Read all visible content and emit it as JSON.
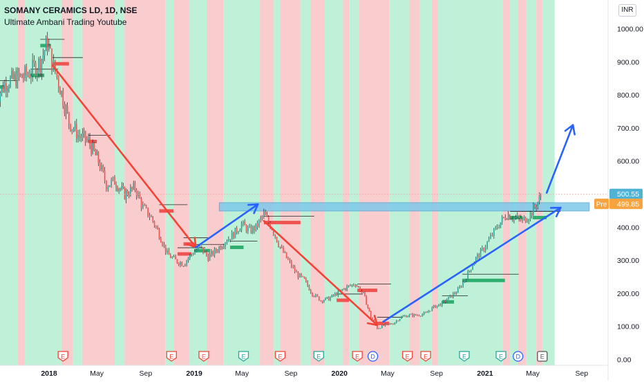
{
  "header": {
    "title": "SOMANY CERAMICS LD, 1D, NSE",
    "subtitle": "Ultimate Ambani Trading Youtube"
  },
  "price_axis": {
    "currency": "INR",
    "last_price_label": "500.55",
    "pre_label": "Pre",
    "pre_price_label": "499.85"
  },
  "colors": {
    "bull_zone": "#b7f0d4",
    "bear_zone": "#f8c6c8",
    "up_candle": "#26a69a",
    "down_candle": "#ef5350",
    "red_arrow": "#f44336",
    "blue_arrow": "#2962ff",
    "resistance_box": "#7ec8ea",
    "last_price_badge": "#4fb3d6",
    "pre_badge": "#f7a440",
    "event_earnings": "#f44336",
    "event_earnings_upcoming": "#26a69a",
    "event_dividend": "#2962ff"
  },
  "chart_data": {
    "type": "line",
    "title": "SOMANY CERAMICS LD, 1D, NSE",
    "subtitle": "Ultimate Ambani Trading Youtube",
    "xlabel": "",
    "ylabel": "",
    "x_range": [
      "2017-08-20",
      "2021-10-15"
    ],
    "ylim": [
      0,
      1000
    ],
    "grid": false,
    "y_ticks": [
      "0.00",
      "100.00",
      "200.00",
      "300.00",
      "400.00",
      "500.00",
      "600.00",
      "700.00",
      "800.00",
      "900.00",
      "1000.00"
    ],
    "x_ticks": [
      {
        "date": "2018-01-01",
        "label": "2018",
        "bold": true
      },
      {
        "date": "2018-05-01",
        "label": "May",
        "bold": false
      },
      {
        "date": "2018-09-01",
        "label": "Sep",
        "bold": false
      },
      {
        "date": "2019-01-01",
        "label": "2019",
        "bold": true
      },
      {
        "date": "2019-05-01",
        "label": "May",
        "bold": false
      },
      {
        "date": "2019-09-01",
        "label": "Sep",
        "bold": false
      },
      {
        "date": "2020-01-01",
        "label": "2020",
        "bold": true
      },
      {
        "date": "2020-05-01",
        "label": "May",
        "bold": false
      },
      {
        "date": "2020-09-01",
        "label": "Sep",
        "bold": false
      },
      {
        "date": "2021-01-01",
        "label": "2021",
        "bold": true
      },
      {
        "date": "2021-05-01",
        "label": "May",
        "bold": false
      },
      {
        "date": "2021-09-01",
        "label": "Sep",
        "bold": false
      }
    ],
    "series": [
      {
        "values": [
          [
            "2017-08-20",
            790
          ],
          [
            "2017-09-15",
            840
          ],
          [
            "2017-10-10",
            850
          ],
          [
            "2017-11-05",
            860
          ],
          [
            "2017-12-10",
            900
          ],
          [
            "2017-12-28",
            960
          ],
          [
            "2018-01-08",
            900
          ],
          [
            "2018-01-25",
            840
          ],
          [
            "2018-02-20",
            720
          ],
          [
            "2018-03-15",
            680
          ],
          [
            "2018-04-10",
            660
          ],
          [
            "2018-05-05",
            600
          ],
          [
            "2018-05-25",
            530
          ],
          [
            "2018-06-15",
            540
          ],
          [
            "2018-07-10",
            500
          ],
          [
            "2018-08-05",
            520
          ],
          [
            "2018-08-25",
            460
          ],
          [
            "2018-09-15",
            430
          ],
          [
            "2018-10-05",
            380
          ],
          [
            "2018-10-25",
            320
          ],
          [
            "2018-11-15",
            300
          ],
          [
            "2018-12-05",
            290
          ],
          [
            "2018-12-25",
            320
          ],
          [
            "2019-01-15",
            340
          ],
          [
            "2019-02-05",
            310
          ],
          [
            "2019-02-25",
            330
          ],
          [
            "2019-03-20",
            360
          ],
          [
            "2019-04-10",
            380
          ],
          [
            "2019-04-30",
            410
          ],
          [
            "2019-05-20",
            390
          ],
          [
            "2019-06-05",
            400
          ],
          [
            "2019-06-25",
            440
          ],
          [
            "2019-07-15",
            400
          ],
          [
            "2019-08-05",
            340
          ],
          [
            "2019-08-25",
            300
          ],
          [
            "2019-09-15",
            260
          ],
          [
            "2019-10-05",
            240
          ],
          [
            "2019-10-25",
            200
          ],
          [
            "2019-11-15",
            180
          ],
          [
            "2019-12-05",
            185
          ],
          [
            "2019-12-25",
            200
          ],
          [
            "2020-01-20",
            220
          ],
          [
            "2020-02-10",
            230
          ],
          [
            "2020-03-01",
            200
          ],
          [
            "2020-03-20",
            130
          ],
          [
            "2020-04-05",
            95
          ],
          [
            "2020-04-25",
            105
          ],
          [
            "2020-05-15",
            110
          ],
          [
            "2020-06-05",
            130
          ],
          [
            "2020-06-25",
            135
          ],
          [
            "2020-07-15",
            135
          ],
          [
            "2020-08-05",
            140
          ],
          [
            "2020-08-25",
            160
          ],
          [
            "2020-09-15",
            170
          ],
          [
            "2020-10-05",
            190
          ],
          [
            "2020-10-25",
            210
          ],
          [
            "2020-11-15",
            250
          ],
          [
            "2020-12-05",
            300
          ],
          [
            "2020-12-25",
            330
          ],
          [
            "2021-01-15",
            370
          ],
          [
            "2021-02-05",
            410
          ],
          [
            "2021-02-25",
            440
          ],
          [
            "2021-03-15",
            430
          ],
          [
            "2021-04-05",
            420
          ],
          [
            "2021-04-25",
            440
          ],
          [
            "2021-05-10",
            470
          ],
          [
            "2021-05-25",
            500.55
          ]
        ]
      }
    ],
    "zones": [
      {
        "start": "2017-08-20",
        "end": "2017-10-15",
        "trend": "bull"
      },
      {
        "start": "2017-10-15",
        "end": "2017-11-01",
        "trend": "bear"
      },
      {
        "start": "2017-11-01",
        "end": "2018-02-01",
        "trend": "bull"
      },
      {
        "start": "2018-02-01",
        "end": "2018-03-01",
        "trend": "bear"
      },
      {
        "start": "2018-03-01",
        "end": "2018-03-25",
        "trend": "bull"
      },
      {
        "start": "2018-03-25",
        "end": "2018-06-15",
        "trend": "bear"
      },
      {
        "start": "2018-06-15",
        "end": "2018-07-10",
        "trend": "bull"
      },
      {
        "start": "2018-07-10",
        "end": "2018-10-20",
        "trend": "bear"
      },
      {
        "start": "2018-10-20",
        "end": "2018-11-10",
        "trend": "bull"
      },
      {
        "start": "2018-11-10",
        "end": "2018-12-20",
        "trend": "bear"
      },
      {
        "start": "2018-12-20",
        "end": "2019-02-01",
        "trend": "bull"
      },
      {
        "start": "2019-02-01",
        "end": "2019-03-15",
        "trend": "bear"
      },
      {
        "start": "2019-03-15",
        "end": "2019-06-15",
        "trend": "bull"
      },
      {
        "start": "2019-06-15",
        "end": "2019-07-20",
        "trend": "bear"
      },
      {
        "start": "2019-07-20",
        "end": "2019-08-05",
        "trend": "bull"
      },
      {
        "start": "2019-08-05",
        "end": "2019-09-25",
        "trend": "bear"
      },
      {
        "start": "2019-09-25",
        "end": "2019-10-20",
        "trend": "bull"
      },
      {
        "start": "2019-10-20",
        "end": "2019-11-25",
        "trend": "bear"
      },
      {
        "start": "2019-11-25",
        "end": "2020-01-10",
        "trend": "bull"
      },
      {
        "start": "2020-01-10",
        "end": "2020-01-25",
        "trend": "bear"
      },
      {
        "start": "2020-01-25",
        "end": "2020-02-20",
        "trend": "bull"
      },
      {
        "start": "2020-02-20",
        "end": "2020-05-05",
        "trend": "bear"
      },
      {
        "start": "2020-05-05",
        "end": "2020-06-25",
        "trend": "bull"
      },
      {
        "start": "2020-06-25",
        "end": "2020-07-20",
        "trend": "bear"
      },
      {
        "start": "2020-07-20",
        "end": "2020-08-20",
        "trend": "bull"
      },
      {
        "start": "2020-08-20",
        "end": "2020-09-05",
        "trend": "bear"
      },
      {
        "start": "2020-09-05",
        "end": "2021-02-15",
        "trend": "bull"
      },
      {
        "start": "2021-02-15",
        "end": "2021-03-05",
        "trend": "bear"
      },
      {
        "start": "2021-03-05",
        "end": "2021-03-25",
        "trend": "bull"
      },
      {
        "start": "2021-03-25",
        "end": "2021-04-15",
        "trend": "bear"
      },
      {
        "start": "2021-04-15",
        "end": "2021-05-10",
        "trend": "bull"
      },
      {
        "start": "2021-05-10",
        "end": "2021-05-25",
        "trend": "bear"
      },
      {
        "start": "2021-05-25",
        "end": "2021-06-25",
        "trend": "bull"
      }
    ],
    "resistance_zone": {
      "start": "2019-03-05",
      "end": "2021-09-20",
      "low": 450,
      "high": 475
    },
    "trend_arrows": [
      {
        "color": "red",
        "from": [
          "2018-01-10",
          890
        ],
        "to": [
          "2019-01-05",
          340
        ]
      },
      {
        "color": "blue",
        "from": [
          "2019-01-05",
          340
        ],
        "to": [
          "2019-06-10",
          470
        ]
      },
      {
        "color": "red",
        "from": [
          "2019-06-25",
          420
        ],
        "to": [
          "2020-04-05",
          105
        ]
      },
      {
        "color": "blue",
        "from": [
          "2020-04-20",
          115
        ],
        "to": [
          "2021-07-10",
          460
        ]
      },
      {
        "color": "blue",
        "from": [
          "2021-06-05",
          505
        ],
        "to": [
          "2021-08-10",
          710
        ]
      }
    ],
    "levels": [
      {
        "start": "2017-08-20",
        "end": "2017-09-10",
        "value": 825,
        "kind": "support"
      },
      {
        "start": "2017-11-15",
        "end": "2017-12-20",
        "value": 860,
        "kind": "support"
      },
      {
        "start": "2017-12-10",
        "end": "2018-01-05",
        "value": 950,
        "kind": "support"
      },
      {
        "start": "2018-01-10",
        "end": "2018-02-20",
        "value": 895,
        "kind": "resistance"
      },
      {
        "start": "2018-04-10",
        "end": "2018-05-01",
        "value": 660,
        "kind": "resistance"
      },
      {
        "start": "2018-10-05",
        "end": "2018-11-10",
        "value": 450,
        "kind": "resistance"
      },
      {
        "start": "2018-12-05",
        "end": "2019-01-01",
        "value": 350,
        "kind": "resistance"
      },
      {
        "start": "2018-11-20",
        "end": "2018-12-25",
        "value": 320,
        "kind": "resistance"
      },
      {
        "start": "2019-01-01",
        "end": "2019-02-10",
        "value": 330,
        "kind": "support"
      },
      {
        "start": "2019-04-01",
        "end": "2019-05-05",
        "value": 340,
        "kind": "support"
      },
      {
        "start": "2019-06-25",
        "end": "2019-09-25",
        "value": 415,
        "kind": "resistance"
      },
      {
        "start": "2019-12-25",
        "end": "2020-01-25",
        "value": 180,
        "kind": "resistance"
      },
      {
        "start": "2020-02-15",
        "end": "2020-04-05",
        "value": 210,
        "kind": "resistance"
      },
      {
        "start": "2020-04-05",
        "end": "2020-05-05",
        "value": 110,
        "kind": "resistance"
      },
      {
        "start": "2020-09-15",
        "end": "2020-10-15",
        "value": 175,
        "kind": "support"
      },
      {
        "start": "2020-11-05",
        "end": "2021-02-20",
        "value": 240,
        "kind": "support"
      },
      {
        "start": "2021-03-05",
        "end": "2021-04-05",
        "value": 430,
        "kind": "support"
      },
      {
        "start": "2021-05-01",
        "end": "2021-06-05",
        "value": 430,
        "kind": "support"
      }
    ],
    "events": [
      {
        "date": "2018-02-05",
        "label": "E",
        "kind": "earnings"
      },
      {
        "date": "2018-11-05",
        "label": "E",
        "kind": "earnings"
      },
      {
        "date": "2019-01-25",
        "label": "E",
        "kind": "earnings"
      },
      {
        "date": "2019-05-05",
        "label": "E",
        "kind": "earnings-upcoming"
      },
      {
        "date": "2019-08-05",
        "label": "E",
        "kind": "earnings"
      },
      {
        "date": "2019-11-10",
        "label": "E",
        "kind": "earnings-upcoming"
      },
      {
        "date": "2020-02-15",
        "label": "E",
        "kind": "earnings"
      },
      {
        "date": "2020-03-25",
        "label": "D",
        "kind": "dividend"
      },
      {
        "date": "2020-06-20",
        "label": "E",
        "kind": "earnings"
      },
      {
        "date": "2020-08-05",
        "label": "E",
        "kind": "earnings"
      },
      {
        "date": "2020-11-10",
        "label": "E",
        "kind": "earnings-upcoming"
      },
      {
        "date": "2021-02-10",
        "label": "E",
        "kind": "earnings-upcoming"
      },
      {
        "date": "2021-03-25",
        "label": "D",
        "kind": "dividend"
      },
      {
        "date": "2021-05-25",
        "label": "E",
        "kind": "earnings-future"
      }
    ],
    "last_price": 500.55,
    "pre_price": 499.85
  }
}
